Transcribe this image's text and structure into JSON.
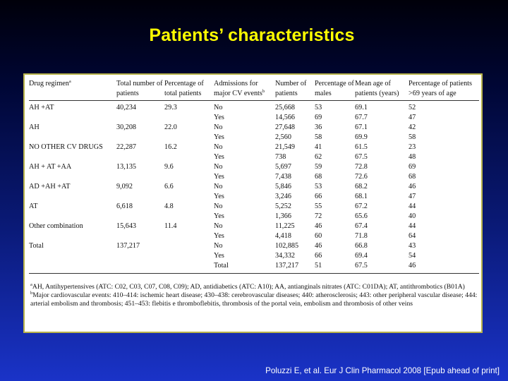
{
  "title": "Patients’ characteristics",
  "table": {
    "headers": [
      {
        "text": "Drug regimen",
        "sup": "a"
      },
      {
        "text": "Total number of patients",
        "sup": ""
      },
      {
        "text": "Percentage of total patients",
        "sup": ""
      },
      {
        "text": "Admissions for major CV events",
        "sup": "b"
      },
      {
        "text": "Number of patients",
        "sup": ""
      },
      {
        "text": "Percentage of males",
        "sup": ""
      },
      {
        "text": "Mean age of patients (years)",
        "sup": ""
      },
      {
        "text": "Percentage of patients >69 years of age",
        "sup": ""
      }
    ],
    "rows": [
      [
        "AH +AT",
        "40,234",
        "29.3",
        "No",
        "25,668",
        "53",
        "69.1",
        "52"
      ],
      [
        "",
        "",
        "",
        "Yes",
        "14,566",
        "69",
        "67.7",
        "47"
      ],
      [
        "AH",
        "30,208",
        "22.0",
        "No",
        "27,648",
        "36",
        "67.1",
        "42"
      ],
      [
        "",
        "",
        "",
        "Yes",
        "2,560",
        "58",
        "69.9",
        "58"
      ],
      [
        "NO OTHER CV DRUGS",
        "22,287",
        "16.2",
        "No",
        "21,549",
        "41",
        "61.5",
        "23"
      ],
      [
        "",
        "",
        "",
        "Yes",
        "738",
        "62",
        "67.5",
        "48"
      ],
      [
        "AH + AT +AA",
        "13,135",
        "9.6",
        "No",
        "5,697",
        "59",
        "72.8",
        "69"
      ],
      [
        "",
        "",
        "",
        "Yes",
        "7,438",
        "68",
        "72.6",
        "68"
      ],
      [
        "AD +AH +AT",
        "9,092",
        "6.6",
        "No",
        "5,846",
        "53",
        "68.2",
        "46"
      ],
      [
        "",
        "",
        "",
        "Yes",
        "3,246",
        "66",
        "68.1",
        "47"
      ],
      [
        "AT",
        "6,618",
        "4.8",
        "No",
        "5,252",
        "55",
        "67.2",
        "44"
      ],
      [
        "",
        "",
        "",
        "Yes",
        "1,366",
        "72",
        "65.6",
        "40"
      ],
      [
        "Other combination",
        "15,643",
        "11.4",
        "No",
        "11,225",
        "46",
        "67.4",
        "44"
      ],
      [
        "",
        "",
        "",
        "Yes",
        "4,418",
        "60",
        "71.8",
        "64"
      ],
      [
        "Total",
        "137,217",
        "",
        "No",
        "102,885",
        "46",
        "66.8",
        "43"
      ],
      [
        "",
        "",
        "",
        "Yes",
        "34,332",
        "66",
        "69.4",
        "54"
      ],
      [
        "",
        "",
        "",
        "Total",
        "137,217",
        "51",
        "67.5",
        "46"
      ]
    ]
  },
  "footnotes": [
    {
      "mark": "a",
      "text": "AH, Antihypertensives (ATC: C02, C03, C07, C08, C09); AD, antidiabetics (ATC: A10); AA, antianginals nitrates (ATC: C01DA); AT, antithrombotics (B01A)"
    },
    {
      "mark": "b",
      "text": "Major cardiovascular events: 410–414: ischemic heart disease; 430–438: cerebrovascular diseases; 440: atherosclerosis; 443: other peripheral vascular disease; 444: arterial embolism and thrombosis; 451–453: flebitis e thromboflebitis, thrombosis of the portal vein, embolism and thrombosis of other veins"
    }
  ],
  "citation": "Poluzzi E, et al. Eur J Clin Pharmacol 2008 [Epub ahead of print]"
}
